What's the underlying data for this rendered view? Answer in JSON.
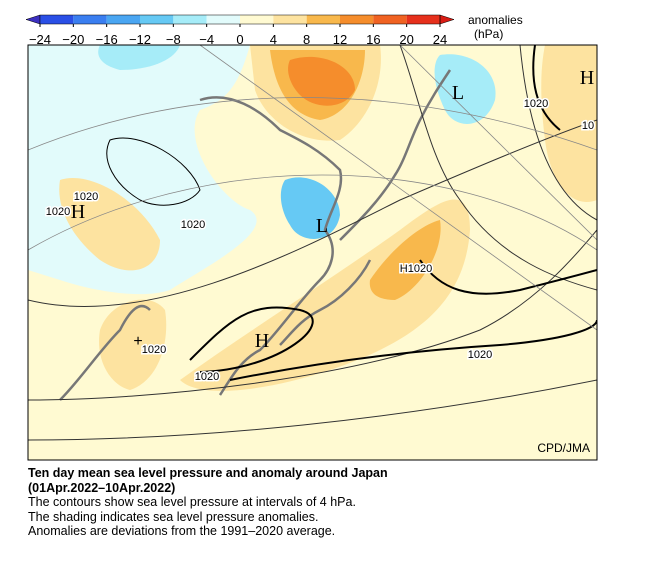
{
  "colorbar": {
    "ticks": [
      -24,
      -20,
      -16,
      -12,
      -8,
      -4,
      0,
      4,
      8,
      12,
      16,
      20,
      24
    ],
    "colors": [
      "#3b2fc0",
      "#2a4fe6",
      "#3a7ef0",
      "#4aa6f2",
      "#66c9f4",
      "#a6ecf8",
      "#e2fbfb",
      "#fffad2",
      "#fde3a0",
      "#f8b84c",
      "#f58d2c",
      "#f06222",
      "#e6301c",
      "#d81c14"
    ],
    "label": [
      "anomalies",
      "(hPa)"
    ]
  },
  "map": {
    "labels": [
      "H",
      "L",
      "1020",
      "10",
      "1020",
      "1020",
      "H",
      "1020",
      "L",
      "H1020",
      "1020",
      "H",
      "1020",
      "1020"
    ],
    "credit": "CPD/JMA"
  },
  "caption": {
    "title": [
      "Ten day mean sea level pressure and anomaly around Japan",
      "(01Apr.2022–10Apr.2022)"
    ],
    "lines": [
      "The contours show sea level pressure at intervals of 4 hPa.",
      "The shading indicates sea level pressure anomalies.",
      "Anomalies are deviations from the 1991–2020 average."
    ]
  }
}
